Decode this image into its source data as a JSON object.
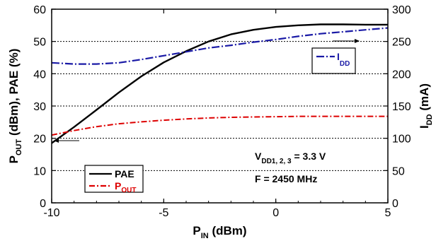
{
  "chart_data": {
    "type": "line",
    "x_axis": {
      "label_main": "P",
      "label_sub": "IN",
      "label_unit": " (dBm)",
      "min": -10,
      "max": 5,
      "ticks": [
        -10,
        -5,
        0,
        5
      ]
    },
    "y_left": {
      "label_parts": [
        {
          "t": "P",
          "sub": false
        },
        {
          "t": "OUT",
          "sub": true
        },
        {
          "t": " (dBm), PAE (%)",
          "sub": false
        }
      ],
      "min": 0,
      "max": 60,
      "ticks": [
        0,
        10,
        20,
        30,
        40,
        50,
        60
      ]
    },
    "y_right": {
      "label_main": "I",
      "label_sub": "DD",
      "label_unit": " (mA)",
      "min": 0,
      "max": 300,
      "ticks": [
        0,
        50,
        100,
        150,
        200,
        250,
        300
      ]
    },
    "gridlines_y": [
      10,
      20,
      30,
      40,
      50
    ],
    "series": [
      {
        "name": "PAE",
        "axis": "left",
        "color": "#000000",
        "dash": "",
        "x": [
          -10,
          -9,
          -8,
          -7,
          -6,
          -5,
          -4,
          -3,
          -2,
          -1,
          0,
          1,
          2,
          3,
          4,
          5
        ],
        "y": [
          18.5,
          23.5,
          28.8,
          34.2,
          39.2,
          43.5,
          47.0,
          50.0,
          52.2,
          53.6,
          54.5,
          55.0,
          55.3,
          55.3,
          55.2,
          55.2
        ]
      },
      {
        "name": "P",
        "name_sub": "OUT",
        "axis": "left",
        "color": "#dd0000",
        "dash": "8 3 2 3",
        "x": [
          -10,
          -9,
          -8,
          -7,
          -6,
          -5,
          -4,
          -3,
          -2,
          -1,
          0,
          1,
          2,
          3,
          4,
          5
        ],
        "y": [
          21.0,
          22.4,
          23.6,
          24.5,
          25.1,
          25.6,
          26.0,
          26.3,
          26.5,
          26.6,
          26.7,
          26.8,
          26.8,
          26.8,
          26.8,
          26.8
        ]
      },
      {
        "name": "I",
        "name_sub": "DD",
        "axis": "right",
        "color": "#1a1aa6",
        "dash": "11 3 2 3",
        "x": [
          -10,
          -9,
          -8,
          -7,
          -6,
          -5,
          -4,
          -3,
          -2,
          -1,
          0,
          1,
          2,
          3,
          4,
          5
        ],
        "y": [
          217,
          215,
          215,
          217,
          222,
          228,
          234,
          240,
          244,
          249,
          253,
          258,
          262,
          265,
          268,
          271
        ]
      }
    ],
    "legend": {
      "items": [
        {
          "main": "PAE",
          "sub": "",
          "color": "#000000",
          "dash": "",
          "text_color": "#000000"
        },
        {
          "main": "P",
          "sub": "OUT",
          "color": "#dd0000",
          "dash": "8 3 2 3",
          "text_color": "#dd0000"
        }
      ],
      "placement": "bottom-left"
    },
    "idd_legend": {
      "main": "I",
      "sub": "DD",
      "color": "#1a1aa6"
    },
    "annotation": {
      "line1_main": "V",
      "line1_sub": "DD1, 2, 3",
      "line1_rest": " = 3.3 V",
      "line2": "F = 2450 MHz"
    }
  }
}
